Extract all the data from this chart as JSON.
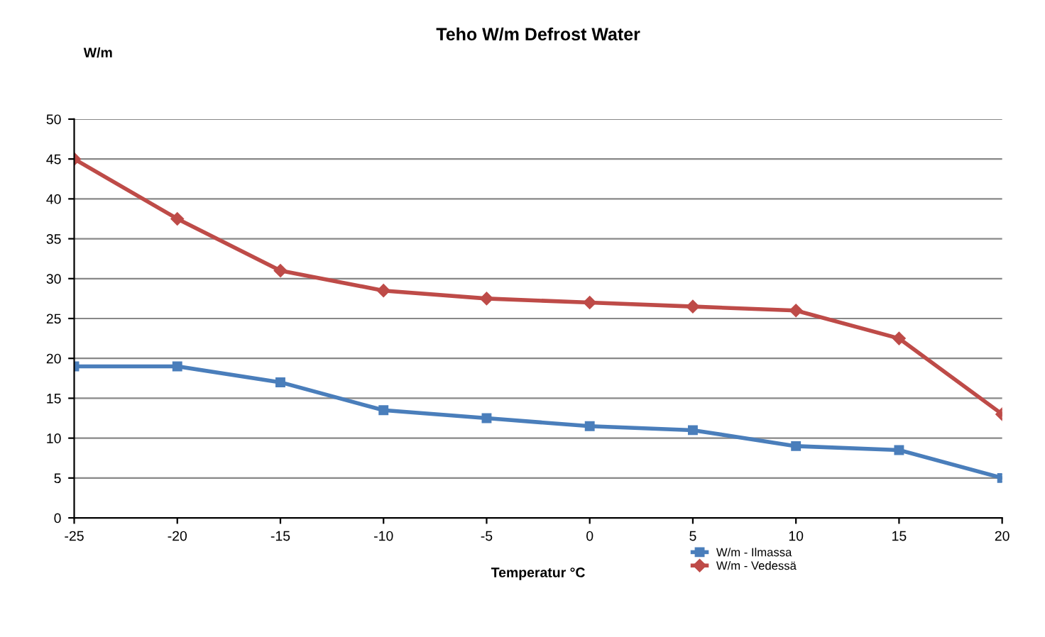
{
  "chart_data": {
    "type": "line",
    "title": "Teho W/m Defrost Water",
    "xlabel": "Temperatur °C",
    "ylabel": "W/m",
    "x": [
      -25,
      -20,
      -15,
      -10,
      -5,
      0,
      5,
      10,
      15,
      20
    ],
    "series": [
      {
        "name": "W/m - Ilmassa",
        "color": "#4a7ebb",
        "marker": "square",
        "values": [
          19,
          19,
          17,
          13.5,
          12.5,
          11.5,
          11,
          9,
          8.5,
          5
        ]
      },
      {
        "name": "W/m - Vedessä",
        "color": "#be4b48",
        "marker": "diamond",
        "values": [
          45,
          37.5,
          31,
          28.5,
          27.5,
          27,
          26.5,
          26,
          22.5,
          13
        ]
      }
    ],
    "xlim": [
      -25,
      20
    ],
    "xticks": [
      -25,
      -20,
      -15,
      -10,
      -5,
      0,
      5,
      10,
      15,
      20
    ],
    "ylim": [
      0,
      50
    ],
    "yticks": [
      0,
      5,
      10,
      15,
      20,
      25,
      30,
      35,
      40,
      45,
      50
    ],
    "grid": "y",
    "legend": "bottom",
    "line_style": "solid"
  }
}
